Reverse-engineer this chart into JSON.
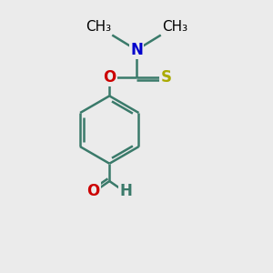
{
  "background_color": "#ebebeb",
  "bond_color": "#3a7a6a",
  "bond_width": 1.8,
  "atom_colors": {
    "N": "#0000cc",
    "O": "#cc0000",
    "S": "#aaaa00",
    "C": "#000000",
    "H": "#3a7a6a"
  },
  "font_size": 12,
  "figsize": [
    3.0,
    3.0
  ],
  "dpi": 100
}
